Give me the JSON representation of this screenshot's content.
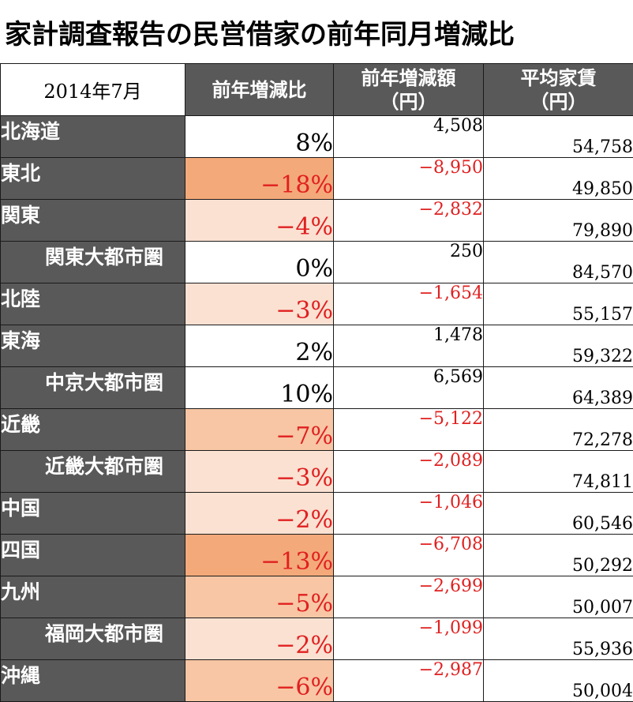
{
  "title": "家計調査報告の民営借家の前年同月増減比",
  "colors": {
    "header_bg": "#595959",
    "header_text": "#ffffff",
    "negative_text": "#e02020",
    "heat_strong": "#f4a97a",
    "heat_mid": "#f8c6a4",
    "heat_light": "#fbe1d2"
  },
  "chart_data": {
    "type": "table",
    "period_label": "2014年7月",
    "columns": [
      {
        "line1": "前年増減比",
        "line2": ""
      },
      {
        "line1": "前年増減額",
        "line2": "（円）"
      },
      {
        "line1": "平均家賃",
        "line2": "（円）"
      }
    ],
    "rows": [
      {
        "region": "北海道",
        "sub": false,
        "pct": "8%",
        "pct_value": 8,
        "diff": "4,508",
        "rent": "54,758"
      },
      {
        "region": "東北",
        "sub": false,
        "pct": "−18%",
        "pct_value": -18,
        "diff": "−8,950",
        "rent": "49,850"
      },
      {
        "region": "関東",
        "sub": false,
        "pct": "−4%",
        "pct_value": -4,
        "diff": "−2,832",
        "rent": "79,890"
      },
      {
        "region": "関東大都市圏",
        "sub": true,
        "pct": "0%",
        "pct_value": 0,
        "diff": "250",
        "rent": "84,570"
      },
      {
        "region": "北陸",
        "sub": false,
        "pct": "−3%",
        "pct_value": -3,
        "diff": "−1,654",
        "rent": "55,157"
      },
      {
        "region": "東海",
        "sub": false,
        "pct": "2%",
        "pct_value": 2,
        "diff": "1,478",
        "rent": "59,322"
      },
      {
        "region": "中京大都市圏",
        "sub": true,
        "pct": "10%",
        "pct_value": 10,
        "diff": "6,569",
        "rent": "64,389"
      },
      {
        "region": "近畿",
        "sub": false,
        "pct": "−7%",
        "pct_value": -7,
        "diff": "−5,122",
        "rent": "72,278"
      },
      {
        "region": "近畿大都市圏",
        "sub": true,
        "pct": "−3%",
        "pct_value": -3,
        "diff": "−2,089",
        "rent": "74,811"
      },
      {
        "region": "中国",
        "sub": false,
        "pct": "−2%",
        "pct_value": -2,
        "diff": "−1,046",
        "rent": "60,546"
      },
      {
        "region": "四国",
        "sub": false,
        "pct": "−13%",
        "pct_value": -13,
        "diff": "−6,708",
        "rent": "50,292"
      },
      {
        "region": "九州",
        "sub": false,
        "pct": "−5%",
        "pct_value": -5,
        "diff": "−2,699",
        "rent": "50,007"
      },
      {
        "region": "福岡大都市圏",
        "sub": true,
        "pct": "−2%",
        "pct_value": -2,
        "diff": "−1,099",
        "rent": "55,936"
      },
      {
        "region": "沖縄",
        "sub": false,
        "pct": "−6%",
        "pct_value": -6,
        "diff": "−2,987",
        "rent": "50,004"
      }
    ]
  }
}
